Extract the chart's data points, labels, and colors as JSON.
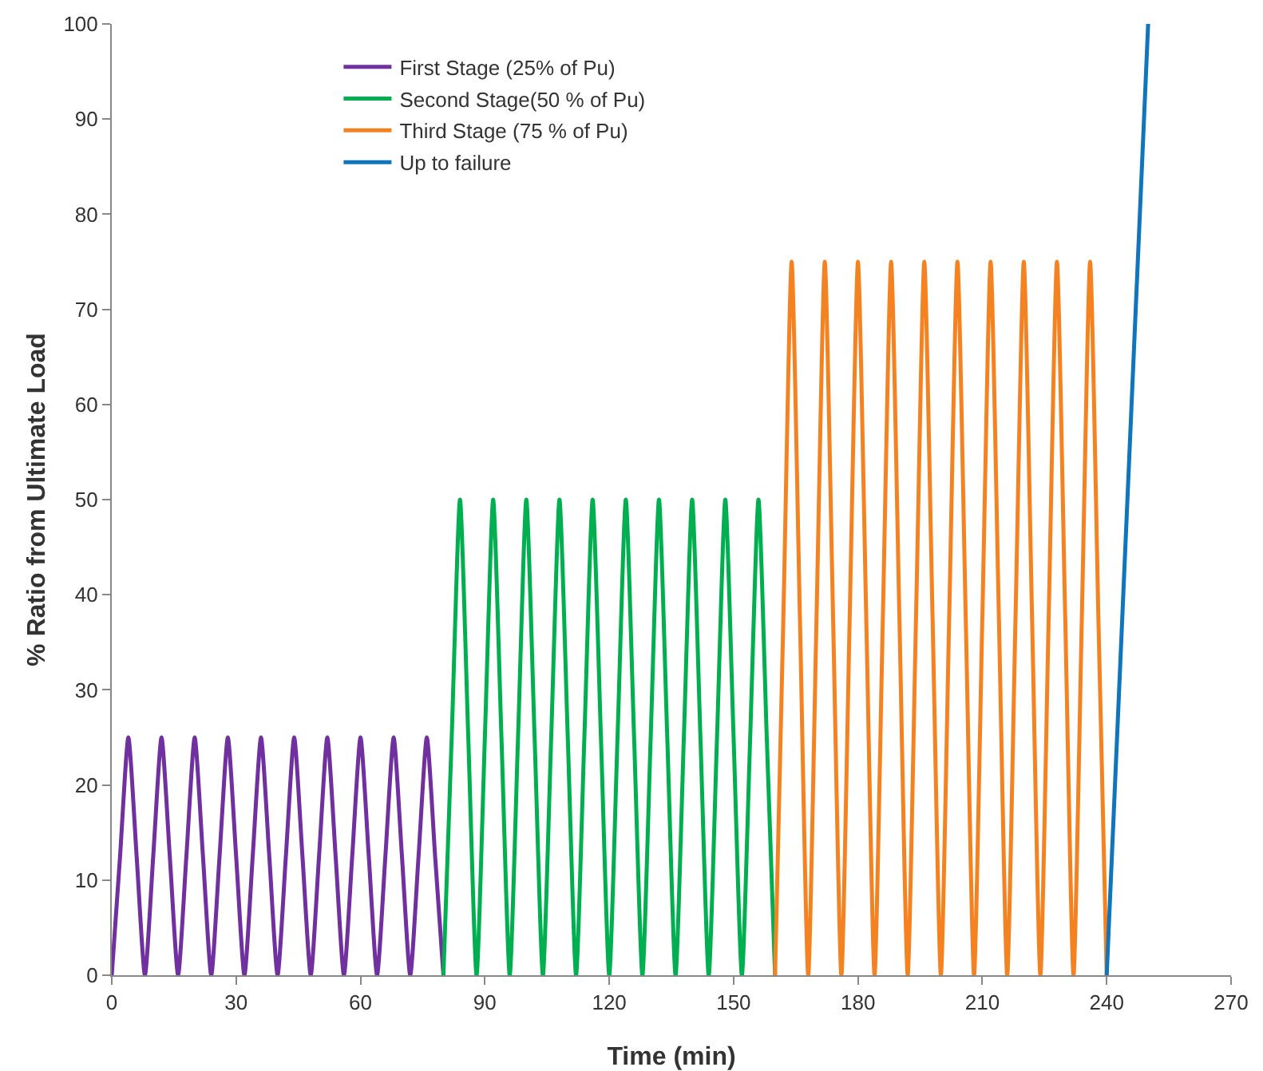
{
  "chart_data": {
    "type": "line",
    "xlabel": "Time (min)",
    "ylabel": "% Ratio from Ultimate Load",
    "xlim": [
      0,
      270
    ],
    "xticks": [
      0,
      30,
      60,
      90,
      120,
      150,
      180,
      210,
      240,
      270
    ],
    "ylim": [
      0,
      100
    ],
    "yticks": [
      0,
      10,
      20,
      30,
      40,
      50,
      60,
      70,
      80,
      90,
      100
    ],
    "grid": false,
    "legend": "top left",
    "marker": "none",
    "line_style": "solid",
    "series": [
      {
        "name": "First Stage (25% of Pu)",
        "color": "#7030a0",
        "x": [
          0,
          2,
          4,
          6,
          8,
          10,
          12,
          14,
          16,
          18,
          20,
          22,
          24,
          26,
          28,
          30,
          32,
          34,
          36,
          38,
          40,
          42,
          44,
          46,
          48,
          50,
          52,
          54,
          56,
          58,
          60,
          62,
          64,
          66,
          68,
          70,
          72,
          74,
          76,
          78,
          80
        ],
        "values": [
          0,
          12.5,
          25,
          12.5,
          0,
          12.5,
          25,
          12.5,
          0,
          12.5,
          25,
          12.5,
          0,
          12.5,
          25,
          12.5,
          0,
          12.5,
          25,
          12.5,
          0,
          12.5,
          25,
          12.5,
          0,
          12.5,
          25,
          12.5,
          0,
          12.5,
          25,
          12.5,
          0,
          12.5,
          25,
          12.5,
          0,
          12.5,
          25,
          12.5,
          0
        ]
      },
      {
        "name": "Second Stage(50 % of Pu)",
        "color": "#00b050",
        "x": [
          80,
          82,
          84,
          86,
          88,
          90,
          92,
          94,
          96,
          98,
          100,
          102,
          104,
          106,
          108,
          110,
          112,
          114,
          116,
          118,
          120,
          122,
          124,
          126,
          128,
          130,
          132,
          134,
          136,
          138,
          140,
          142,
          144,
          146,
          148,
          150,
          152,
          154,
          156,
          158,
          160
        ],
        "values": [
          0,
          25,
          50,
          25,
          0,
          25,
          50,
          25,
          0,
          25,
          50,
          25,
          0,
          25,
          50,
          25,
          0,
          25,
          50,
          25,
          0,
          25,
          50,
          25,
          0,
          25,
          50,
          25,
          0,
          25,
          50,
          25,
          0,
          25,
          50,
          25,
          0,
          25,
          50,
          25,
          0
        ]
      },
      {
        "name": "Third Stage (75 % of Pu)",
        "color": "#f58220",
        "x": [
          160,
          162,
          164,
          166,
          168,
          170,
          172,
          174,
          176,
          178,
          180,
          182,
          184,
          186,
          188,
          190,
          192,
          194,
          196,
          198,
          200,
          202,
          204,
          206,
          208,
          210,
          212,
          214,
          216,
          218,
          220,
          222,
          224,
          226,
          228,
          230,
          232,
          234,
          236,
          238,
          240
        ],
        "values": [
          0,
          37.5,
          75,
          37.5,
          0,
          37.5,
          75,
          37.5,
          0,
          37.5,
          75,
          37.5,
          0,
          37.5,
          75,
          37.5,
          0,
          37.5,
          75,
          37.5,
          0,
          37.5,
          75,
          37.5,
          0,
          37.5,
          75,
          37.5,
          0,
          37.5,
          75,
          37.5,
          0,
          37.5,
          75,
          37.5,
          0,
          37.5,
          75,
          37.5,
          0
        ]
      },
      {
        "name": "Up to failure",
        "color": "#0f75bc",
        "x": [
          240,
          250
        ],
        "values": [
          0,
          100
        ]
      }
    ]
  }
}
